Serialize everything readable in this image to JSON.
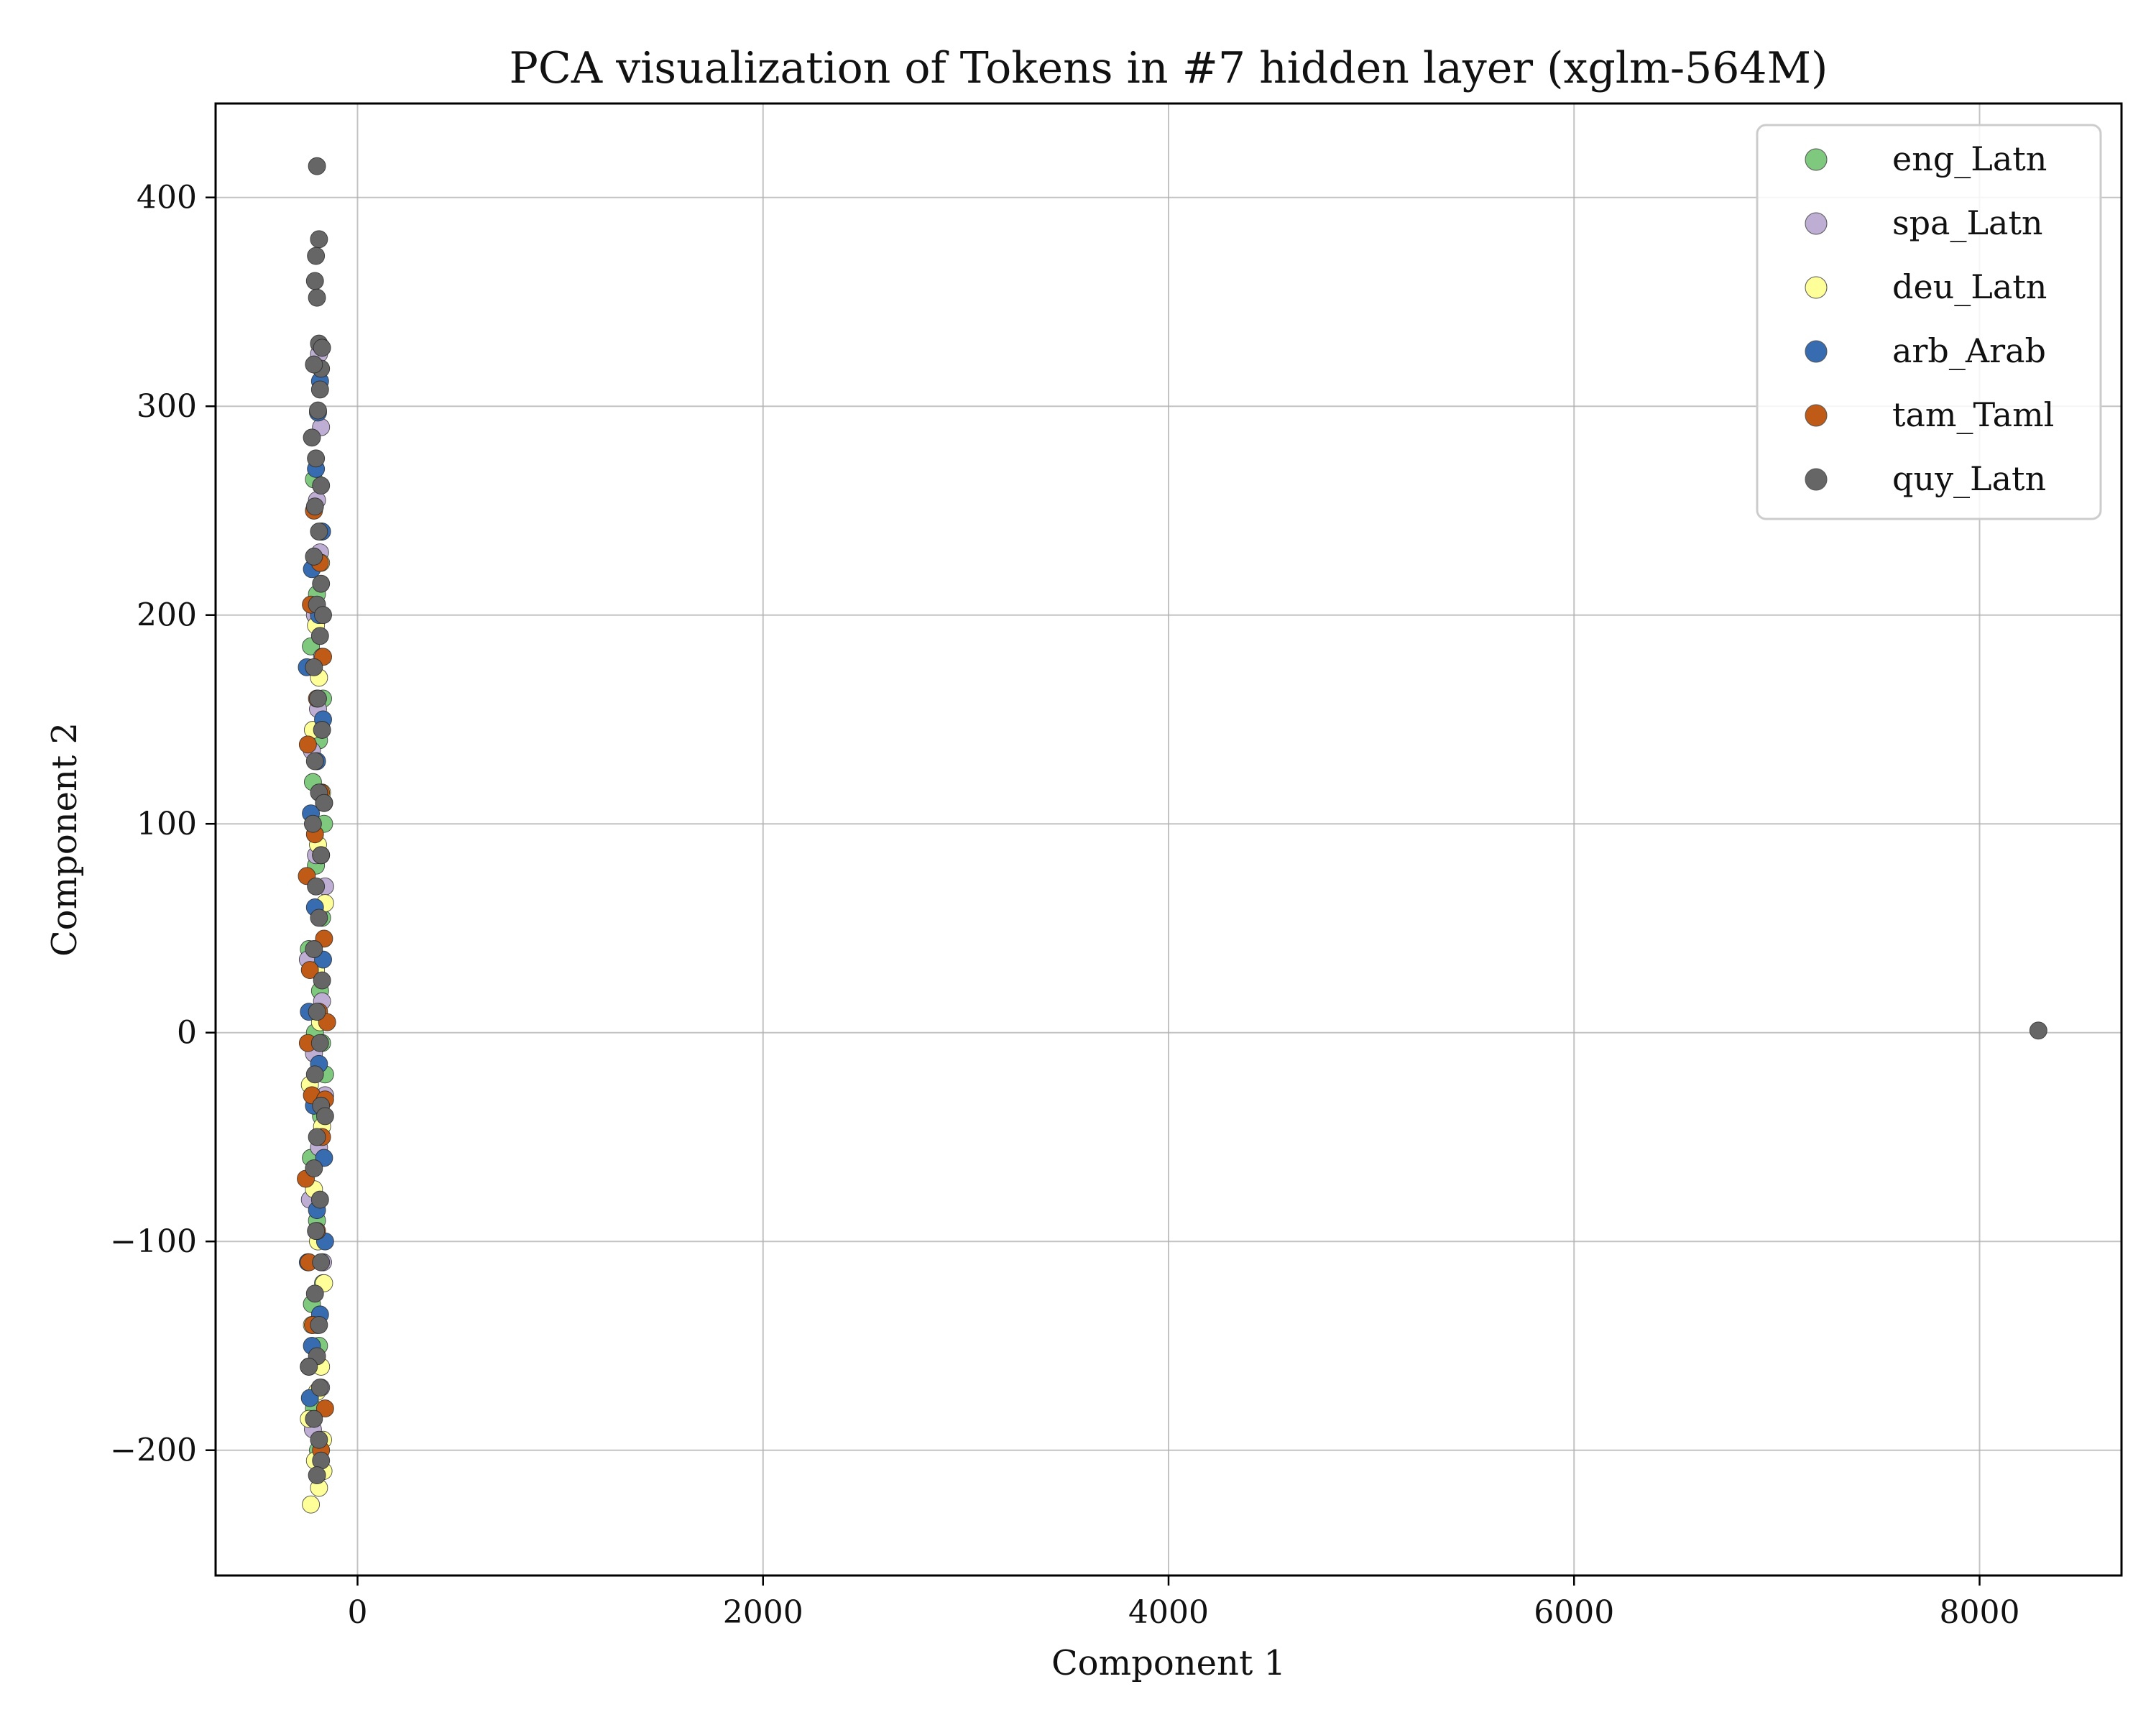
{
  "colors": {
    "eng_Latn": "#7fc97f",
    "spa_Latn": "#beaed4",
    "deu_Latn": "#ffff99",
    "arb_Arab": "#386cb0",
    "tam_Taml": "#bf5b17",
    "quy_Latn": "#666666"
  },
  "chart_data": {
    "type": "scatter",
    "title": "PCA visualization of Tokens in #7 hidden layer (xglm-564M)",
    "xlabel": "Component 1",
    "ylabel": "Component 2",
    "xlim": [
      -700,
      8700
    ],
    "ylim": [
      -260,
      445
    ],
    "xticks": [
      0,
      2000,
      4000,
      6000,
      8000
    ],
    "xtick_labels": [
      "0",
      "2000",
      "4000",
      "6000",
      "8000"
    ],
    "yticks": [
      -200,
      -100,
      0,
      100,
      200,
      300,
      400
    ],
    "ytick_labels": [
      "−200",
      "−100",
      "0",
      "100",
      "200",
      "300",
      "400"
    ],
    "grid": true,
    "legend_position": "top-right",
    "series": [
      {
        "name": "eng_Latn",
        "color": "#7fc97f",
        "points": [
          [
            -215,
            -180
          ],
          [
            -190,
            -150
          ],
          [
            -170,
            -120
          ],
          [
            -200,
            -90
          ],
          [
            -230,
            -60
          ],
          [
            -180,
            -40
          ],
          [
            -160,
            -20
          ],
          [
            -210,
            0
          ],
          [
            -185,
            20
          ],
          [
            -240,
            40
          ],
          [
            -175,
            55
          ],
          [
            -205,
            80
          ],
          [
            -165,
            100
          ],
          [
            -220,
            120
          ],
          [
            -190,
            140
          ],
          [
            -170,
            160
          ],
          [
            -230,
            185
          ],
          [
            -200,
            210
          ],
          [
            -180,
            240
          ],
          [
            -215,
            265
          ],
          [
            -195,
            -200
          ],
          [
            -175,
            -5
          ],
          [
            -225,
            -130
          ]
        ]
      },
      {
        "name": "spa_Latn",
        "color": "#beaed4",
        "points": [
          [
            -220,
            -190
          ],
          [
            -180,
            -170
          ],
          [
            -200,
            -140
          ],
          [
            -170,
            -110
          ],
          [
            -235,
            -80
          ],
          [
            -190,
            -55
          ],
          [
            -160,
            -30
          ],
          [
            -215,
            -10
          ],
          [
            -175,
            15
          ],
          [
            -245,
            35
          ],
          [
            -185,
            60
          ],
          [
            -205,
            85
          ],
          [
            -165,
            110
          ],
          [
            -225,
            135
          ],
          [
            -195,
            155
          ],
          [
            -175,
            180
          ],
          [
            -210,
            200
          ],
          [
            -185,
            230
          ],
          [
            -200,
            255
          ],
          [
            -180,
            290
          ],
          [
            -190,
            325
          ],
          [
            -240,
            -160
          ],
          [
            -160,
            70
          ]
        ]
      },
      {
        "name": "deu_Latn",
        "color": "#ffff99",
        "points": [
          [
            -230,
            -226
          ],
          [
            -190,
            -218
          ],
          [
            -210,
            -205
          ],
          [
            -170,
            -195
          ],
          [
            -240,
            -185
          ],
          [
            -200,
            -172
          ],
          [
            -180,
            -160
          ],
          [
            -225,
            -140
          ],
          [
            -165,
            -120
          ],
          [
            -195,
            -100
          ],
          [
            -215,
            -75
          ],
          [
            -175,
            -45
          ],
          [
            -235,
            -25
          ],
          [
            -185,
            5
          ],
          [
            -205,
            30
          ],
          [
            -160,
            62
          ],
          [
            -195,
            90
          ],
          [
            -175,
            115
          ],
          [
            -220,
            145
          ],
          [
            -190,
            170
          ],
          [
            -205,
            195
          ],
          [
            -180,
            225
          ],
          [
            -168,
            -210
          ]
        ]
      },
      {
        "name": "arb_Arab",
        "color": "#386cb0",
        "points": [
          [
            -225,
            -150
          ],
          [
            -185,
            -135
          ],
          [
            -245,
            -110
          ],
          [
            -200,
            -85
          ],
          [
            -165,
            -60
          ],
          [
            -215,
            -35
          ],
          [
            -190,
            -15
          ],
          [
            -240,
            10
          ],
          [
            -170,
            35
          ],
          [
            -210,
            60
          ],
          [
            -180,
            85
          ],
          [
            -230,
            105
          ],
          [
            -200,
            130
          ],
          [
            -170,
            150
          ],
          [
            -250,
            175
          ],
          [
            -190,
            200
          ],
          [
            -225,
            222
          ],
          [
            -175,
            240
          ],
          [
            -205,
            270
          ],
          [
            -195,
            297
          ],
          [
            -185,
            312
          ],
          [
            -235,
            -175
          ],
          [
            -160,
            -100
          ]
        ]
      },
      {
        "name": "tam_Taml",
        "color": "#bf5b17",
        "points": [
          [
            -240,
            -110
          ],
          [
            -200,
            -95
          ],
          [
            -255,
            -70
          ],
          [
            -175,
            -50
          ],
          [
            -225,
            -30
          ],
          [
            -160,
            -32
          ],
          [
            -245,
            -5
          ],
          [
            -190,
            10
          ],
          [
            -235,
            30
          ],
          [
            -165,
            45
          ],
          [
            -250,
            75
          ],
          [
            -210,
            95
          ],
          [
            -180,
            115
          ],
          [
            -245,
            138
          ],
          [
            -200,
            160
          ],
          [
            -170,
            180
          ],
          [
            -230,
            205
          ],
          [
            -185,
            225
          ],
          [
            -215,
            250
          ],
          [
            -180,
            -200
          ],
          [
            -160,
            -180
          ],
          [
            -220,
            -140
          ],
          [
            -150,
            5
          ]
        ]
      },
      {
        "name": "quy_Latn",
        "color": "#666666",
        "points": [
          [
            -200,
            415
          ],
          [
            -190,
            380
          ],
          [
            -205,
            372
          ],
          [
            -210,
            360
          ],
          [
            -200,
            352
          ],
          [
            -190,
            330
          ],
          [
            -175,
            328
          ],
          [
            -180,
            318
          ],
          [
            -215,
            320
          ],
          [
            -185,
            308
          ],
          [
            -195,
            298
          ],
          [
            -225,
            285
          ],
          [
            -205,
            275
          ],
          [
            -180,
            262
          ],
          [
            -210,
            252
          ],
          [
            -190,
            240
          ],
          [
            -215,
            228
          ],
          [
            -180,
            215
          ],
          [
            -200,
            205
          ],
          [
            -185,
            190
          ],
          [
            -215,
            175
          ],
          [
            -195,
            160
          ],
          [
            -175,
            145
          ],
          [
            -210,
            130
          ],
          [
            -190,
            115
          ],
          [
            -220,
            100
          ],
          [
            -180,
            85
          ],
          [
            -205,
            70
          ],
          [
            -190,
            55
          ],
          [
            -215,
            40
          ],
          [
            -175,
            25
          ],
          [
            -200,
            10
          ],
          [
            -185,
            -5
          ],
          [
            -210,
            -20
          ],
          [
            -180,
            -35
          ],
          [
            -200,
            -50
          ],
          [
            -215,
            -65
          ],
          [
            -185,
            -80
          ],
          [
            -205,
            -95
          ],
          [
            -180,
            -110
          ],
          [
            -210,
            -125
          ],
          [
            -190,
            -140
          ],
          [
            -200,
            -155
          ],
          [
            -185,
            -170
          ],
          [
            -215,
            -185
          ],
          [
            -190,
            -195
          ],
          [
            -180,
            -205
          ],
          [
            -200,
            -212
          ],
          [
            -160,
            -40
          ],
          [
            -165,
            110
          ],
          [
            -170,
            200
          ],
          [
            -240,
            -160
          ],
          [
            8290,
            1
          ]
        ]
      }
    ]
  }
}
